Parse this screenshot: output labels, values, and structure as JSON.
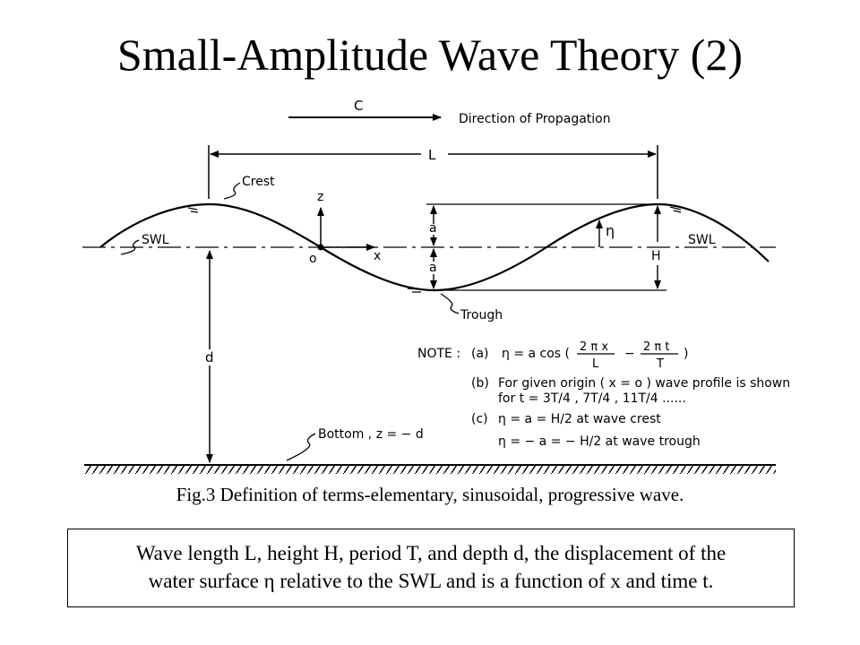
{
  "slide": {
    "title": "Small-Amplitude Wave Theory (2)",
    "caption": "Fig.3 Definition of terms-elementary, sinusoidal, progressive wave.",
    "description_line1": "Wave length L, height H, period T, and depth d, the displacement of the",
    "description_line2": "water surface η relative to the SWL and is a function of x and time t."
  },
  "figure": {
    "celerity": "C",
    "direction": "Direction of Propagation",
    "wavelength": "L",
    "crest": "Crest",
    "trough": "Trough",
    "swl_left": "SWL",
    "swl_right": "SWL",
    "z_axis": "z",
    "x_axis": "x",
    "origin": "o",
    "amp_upper": "a",
    "amp_lower": "a",
    "eta": "η",
    "height": "H",
    "depth": "d",
    "bottom": "Bottom , z = − d",
    "note_label": "NOTE :",
    "note_a_prefix": "(a)",
    "note_a_eq": "η = a cos (",
    "note_a_frac1_num": "2 π x",
    "note_a_frac1_den": "L",
    "note_a_minus": "−",
    "note_a_frac2_num": "2 π t",
    "note_a_frac2_den": "T",
    "note_a_close": ")",
    "note_b_prefix": "(b)",
    "note_b_line1": "For given origin ( x = o ) wave profile is shown",
    "note_b_line2": "for t = 3T/4 , 7T/4 , 11T/4 ......",
    "note_c_prefix": "(c)",
    "note_c_line1": "η = a = H/2 at wave crest",
    "note_c_line2": "η = − a = − H/2 at wave trough"
  }
}
